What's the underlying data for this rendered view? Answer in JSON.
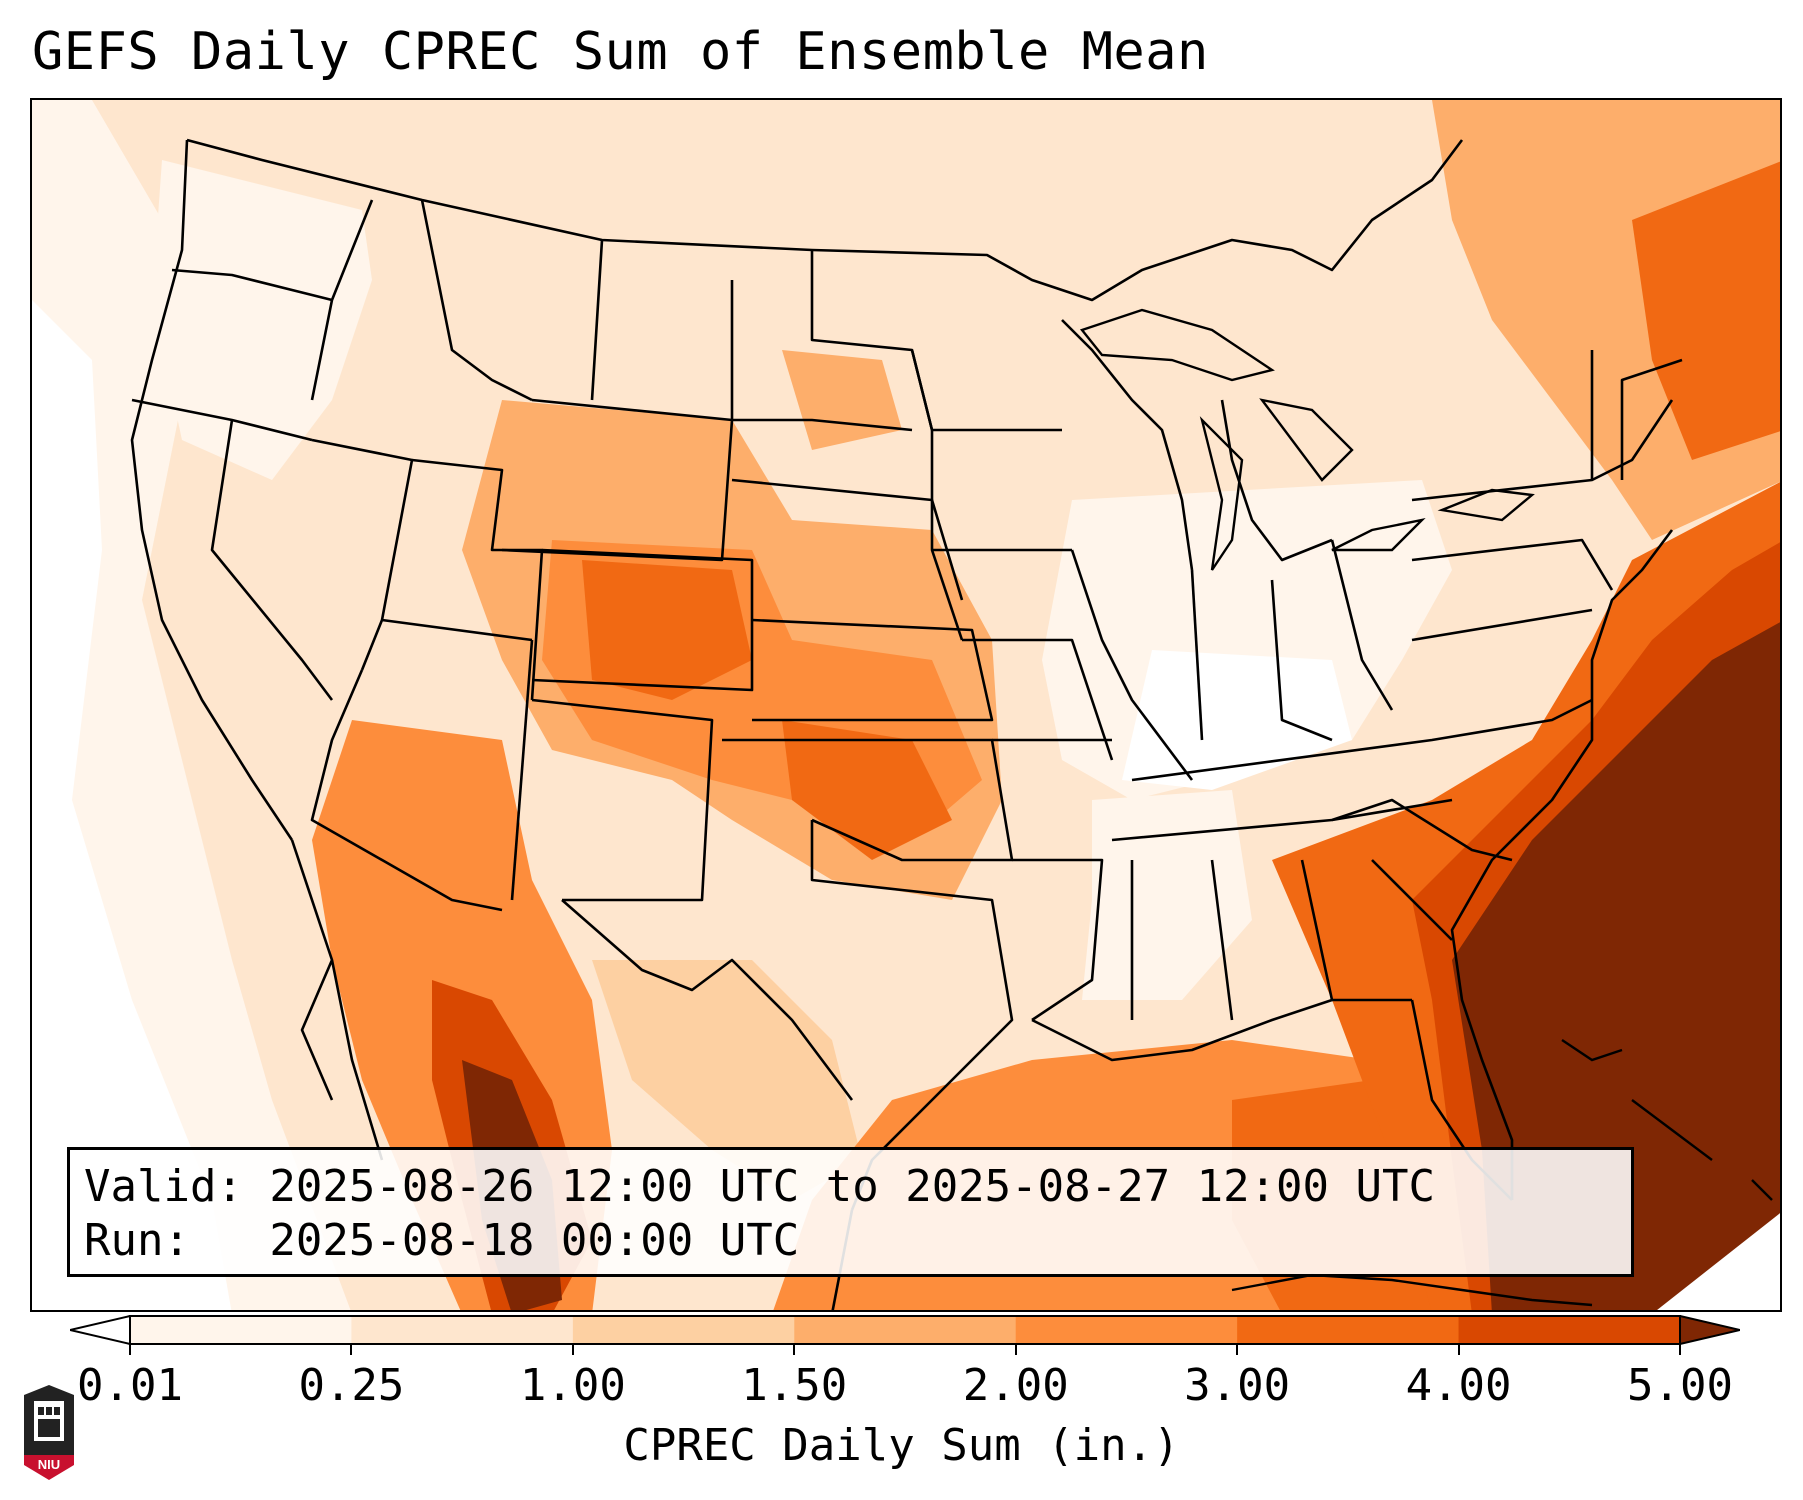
{
  "title": "GEFS Daily CPREC Sum of Ensemble Mean",
  "info": {
    "valid_line": "Valid: 2025-08-26 12:00 UTC to 2025-08-27 12:00 UTC",
    "run_line": "Run:   2025-08-18 00:00 UTC"
  },
  "colorbar": {
    "label": "CPREC Daily Sum (in.)",
    "ticks": [
      "0.01",
      "0.25",
      "1.00",
      "1.50",
      "2.00",
      "3.00",
      "4.00",
      "5.00"
    ],
    "colors": [
      "#fff5eb",
      "#fee6ce",
      "#fdd0a2",
      "#fdae6b",
      "#fd8d3c",
      "#f16913",
      "#d94801",
      "#7f2704"
    ],
    "extend": "both"
  },
  "logo": {
    "text": "NIU"
  },
  "colors": {
    "lightest": "#fff5eb",
    "light": "#fee6ce",
    "pale": "#fdd0a2",
    "mid": "#fdae6b",
    "orange": "#fd8d3c",
    "dark_orange": "#f16913",
    "deep": "#d94801",
    "darkest": "#7f2704",
    "white": "#ffffff"
  }
}
